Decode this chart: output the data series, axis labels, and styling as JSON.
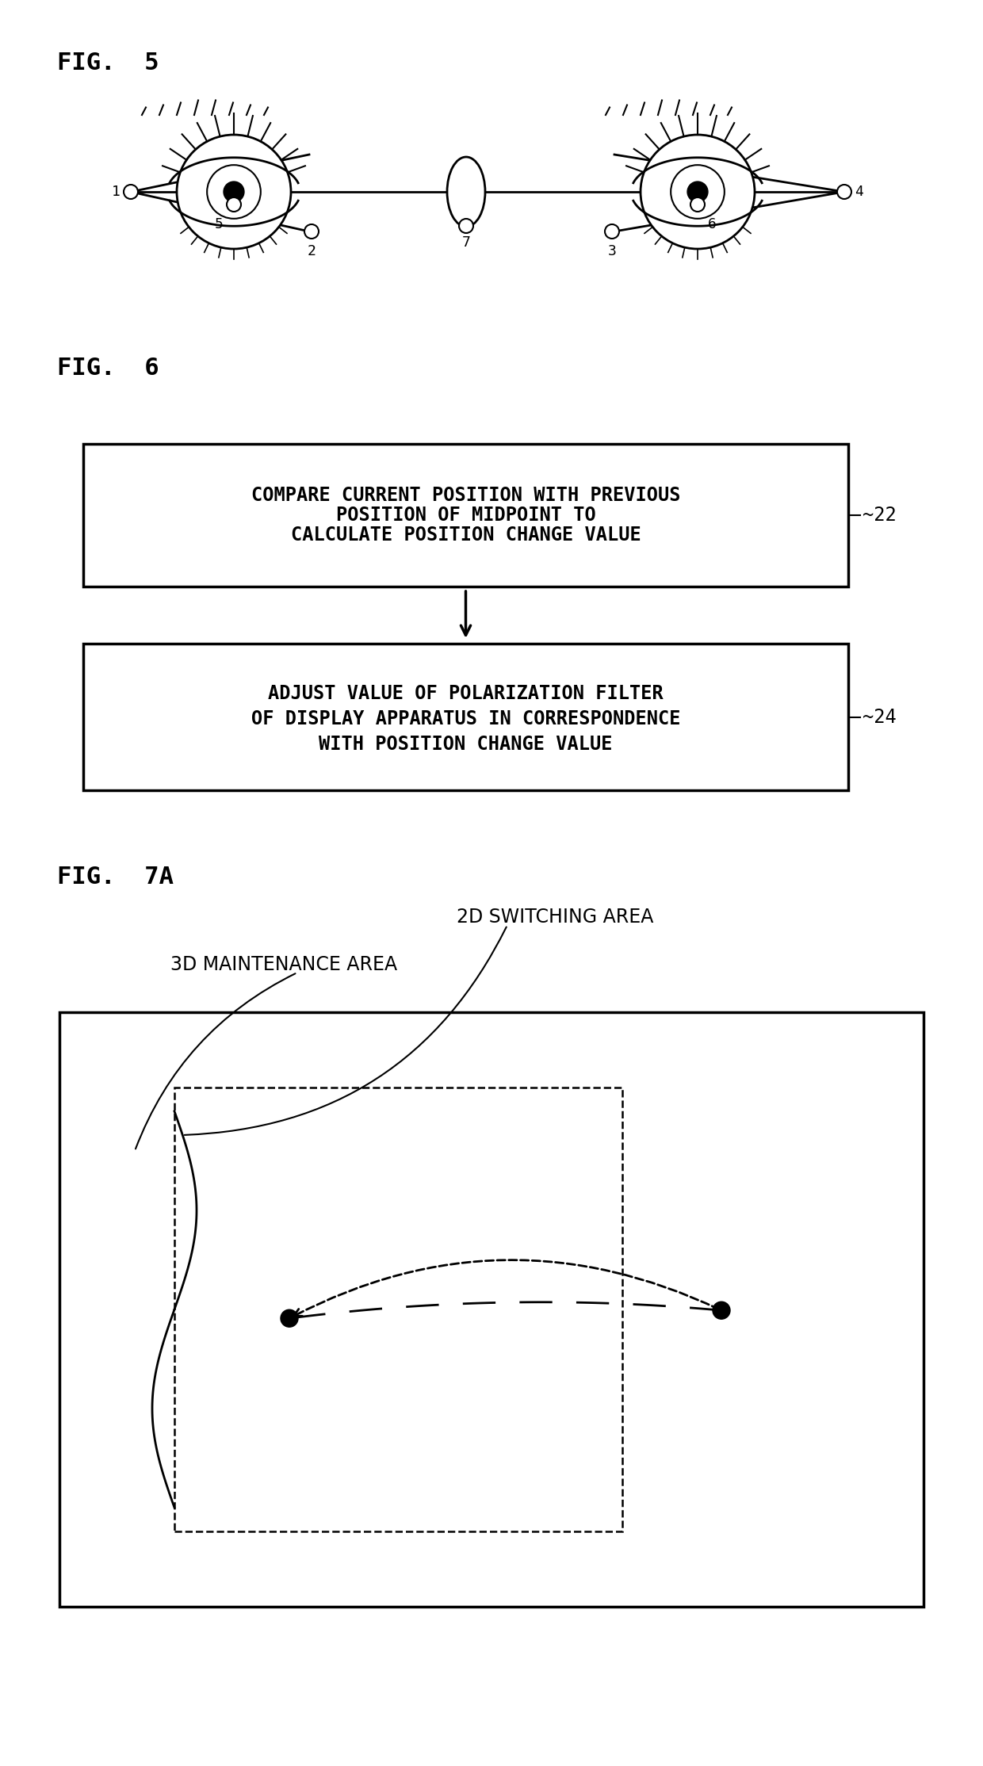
{
  "bg_color": "#ffffff",
  "fig5_label": "FIG.  5",
  "fig6_label": "FIG.  6",
  "fig7a_label": "FIG.  7A",
  "box1_line1": "COMPARE CURRENT POSITION WITH PREVIOUS",
  "box1_line2": "POSITION OF MIDPOINT TO",
  "box1_line3": "CALCULATE POSITION CHANGE VALUE",
  "box2_line1": "ADJUST VALUE OF POLARIZATION FILTER",
  "box2_line2": "OF DISPLAY APPARATUS IN CORRESPONDENCE",
  "box2_line3": "WITH POSITION CHANGE VALUE",
  "box1_label": "~22",
  "box2_label": "~24",
  "label_2d": "2D SWITCHING AREA",
  "label_3d": "3D MAINTENANCE AREA"
}
